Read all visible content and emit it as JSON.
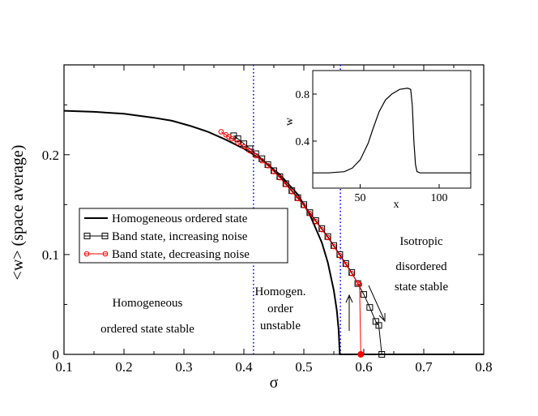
{
  "chart_data": {
    "type": "line",
    "title": "",
    "xlabel": "σ",
    "ylabel": "<w>   (space average)",
    "xlim": [
      0.1,
      0.8
    ],
    "ylim": [
      0,
      0.29
    ],
    "x_ticks": [
      "0.1",
      "0.2",
      "0.3",
      "0.4",
      "0.5",
      "0.6",
      "0.7",
      "0.8"
    ],
    "y_ticks": [
      "0",
      "0.1",
      "0.2"
    ],
    "x_tick_values": [
      0.1,
      0.2,
      0.3,
      0.4,
      0.5,
      0.6,
      0.7,
      0.8
    ],
    "y_tick_values": [
      0,
      0.1,
      0.2
    ],
    "vertical_lines": [
      {
        "x": 0.416,
        "color": "#0000ff",
        "style": "dotted"
      },
      {
        "x": 0.561,
        "color": "#0000ff",
        "style": "dotted"
      }
    ],
    "series": [
      {
        "name": "Homogeneous ordered state",
        "color": "#000000",
        "marker": "none",
        "x": [
          0.1,
          0.15,
          0.2,
          0.25,
          0.28,
          0.31,
          0.34,
          0.37,
          0.4,
          0.43,
          0.46,
          0.49,
          0.51,
          0.53,
          0.54,
          0.55,
          0.555,
          0.558,
          0.56,
          0.8
        ],
        "y": [
          0.244,
          0.243,
          0.241,
          0.237,
          0.234,
          0.229,
          0.223,
          0.215,
          0.206,
          0.195,
          0.18,
          0.16,
          0.14,
          0.112,
          0.092,
          0.064,
          0.044,
          0.025,
          0.0,
          0.0
        ]
      },
      {
        "name": "Band state, increasing noise",
        "color": "#000000",
        "marker": "square",
        "x": [
          0.383,
          0.39,
          0.4,
          0.41,
          0.42,
          0.43,
          0.44,
          0.45,
          0.46,
          0.47,
          0.48,
          0.49,
          0.5,
          0.51,
          0.52,
          0.53,
          0.54,
          0.55,
          0.56,
          0.57,
          0.58,
          0.59,
          0.6,
          0.61,
          0.62,
          0.625,
          0.63
        ],
        "y": [
          0.219,
          0.216,
          0.211,
          0.206,
          0.201,
          0.196,
          0.19,
          0.184,
          0.178,
          0.171,
          0.164,
          0.157,
          0.15,
          0.142,
          0.134,
          0.126,
          0.118,
          0.109,
          0.1,
          0.091,
          0.082,
          0.071,
          0.06,
          0.047,
          0.033,
          0.029,
          0.0
        ]
      },
      {
        "name": "Band state, decreasing noise",
        "color": "#ff0000",
        "marker": "circle",
        "x": [
          0.362,
          0.37,
          0.375,
          0.38,
          0.39,
          0.4,
          0.41,
          0.42,
          0.43,
          0.44,
          0.45,
          0.46,
          0.47,
          0.48,
          0.49,
          0.5,
          0.51,
          0.52,
          0.53,
          0.54,
          0.55,
          0.56,
          0.57,
          0.58,
          0.59,
          0.593,
          0.595
        ],
        "y": [
          0.223,
          0.22,
          0.218,
          0.216,
          0.212,
          0.208,
          0.204,
          0.199,
          0.194,
          0.189,
          0.183,
          0.177,
          0.17,
          0.163,
          0.156,
          0.149,
          0.141,
          0.133,
          0.125,
          0.117,
          0.108,
          0.099,
          0.09,
          0.081,
          0.071,
          0.07,
          0.0
        ]
      }
    ],
    "annotations": [
      {
        "lines": [
          "Homogeneous",
          "ordered state stable"
        ]
      },
      {
        "lines": [
          "Homogen.",
          "order",
          "unstable"
        ]
      },
      {
        "lines": [
          "Isotropic",
          "disordered",
          "state stable"
        ]
      }
    ],
    "inset": {
      "type": "line",
      "xlabel": "x",
      "ylabel": "w",
      "xlim": [
        20,
        120
      ],
      "ylim": [
        0,
        1.0
      ],
      "x_ticks": [
        "50",
        "100"
      ],
      "y_ticks": [
        "0.4",
        "0.8"
      ],
      "x_tick_values": [
        50,
        100
      ],
      "y_tick_values": [
        0.4,
        0.8
      ],
      "x": [
        20,
        30,
        40,
        45,
        50,
        55,
        58,
        62,
        66,
        70,
        75,
        80,
        82,
        83,
        84,
        85,
        86,
        88,
        90,
        120
      ],
      "y": [
        0.13,
        0.13,
        0.14,
        0.17,
        0.24,
        0.38,
        0.5,
        0.65,
        0.75,
        0.8,
        0.84,
        0.85,
        0.84,
        0.7,
        0.4,
        0.2,
        0.14,
        0.13,
        0.13,
        0.13
      ]
    }
  }
}
